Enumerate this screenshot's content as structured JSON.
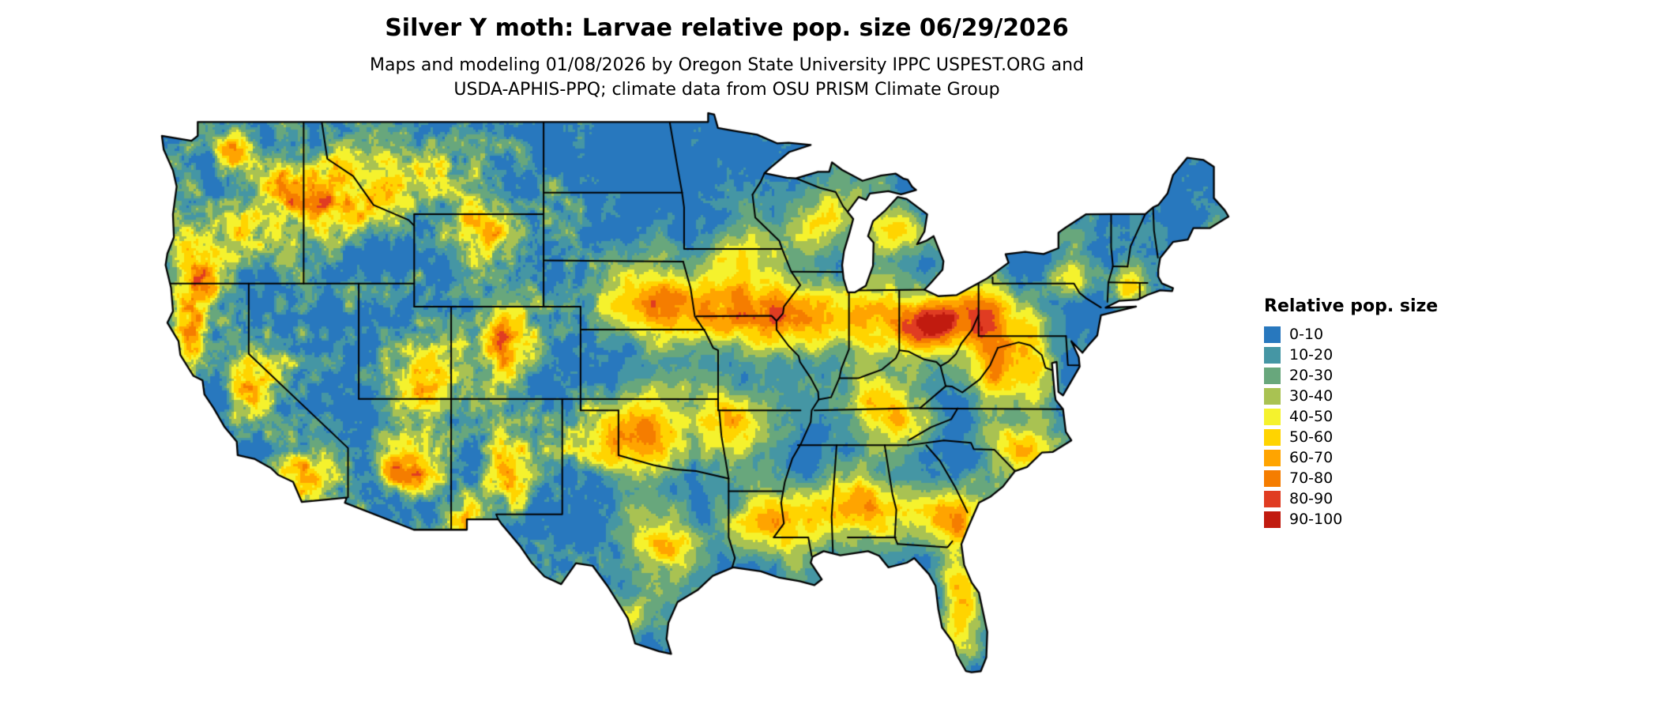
{
  "header": {
    "title": "Silver Y moth: Larvae relative pop. size 06/29/2026",
    "subtitle_line1": "Maps and modeling 01/08/2026 by Oregon State University IPPC USPEST.ORG and",
    "subtitle_line2": "USDA-APHIS-PPQ; climate data from OSU PRISM Climate Group"
  },
  "legend": {
    "title": "Relative pop. size",
    "items": [
      {
        "label": "0-10",
        "color": "#2878be"
      },
      {
        "label": "10-20",
        "color": "#4596a4"
      },
      {
        "label": "20-30",
        "color": "#68a77c"
      },
      {
        "label": "30-40",
        "color": "#a9c252"
      },
      {
        "label": "40-50",
        "color": "#f5f22d"
      },
      {
        "label": "50-60",
        "color": "#ffd400"
      },
      {
        "label": "60-70",
        "color": "#ffa400"
      },
      {
        "label": "70-80",
        "color": "#f57d00"
      },
      {
        "label": "80-90",
        "color": "#e03c22"
      },
      {
        "label": "90-100",
        "color": "#c11b0f"
      }
    ]
  },
  "map": {
    "border_color": "#000000",
    "background_color": "#ffffff"
  }
}
